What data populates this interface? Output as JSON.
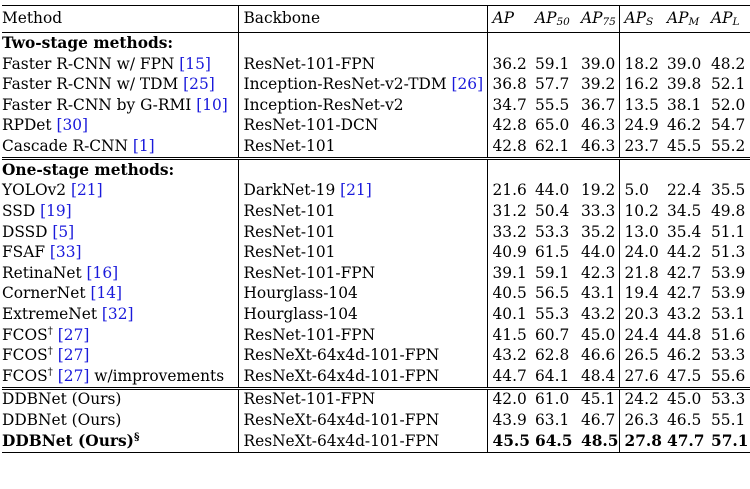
{
  "header": {
    "method": "Method",
    "backbone": "Backbone",
    "ap": "AP",
    "ap50_base": "AP",
    "ap50_sub": "50",
    "ap75_base": "AP",
    "ap75_sub": "75",
    "aps_base": "AP",
    "aps_sub": "S",
    "apm_base": "AP",
    "apm_sub": "M",
    "apl_base": "AP",
    "apl_sub": "L"
  },
  "sections": {
    "two_stage": "Two-stage methods:",
    "one_stage": "One-stage methods:"
  },
  "two_stage_rows": [
    {
      "method": "Faster R-CNN w/ FPN ",
      "ref": "[15]",
      "sup": "",
      "suffix": "",
      "backbone": "ResNet-101-FPN",
      "bref": "",
      "values": [
        "36.2",
        "59.1",
        "39.0",
        "18.2",
        "39.0",
        "48.2"
      ]
    },
    {
      "method": "Faster R-CNN w/ TDM ",
      "ref": "[25]",
      "sup": "",
      "suffix": "",
      "backbone": "Inception-ResNet-v2-TDM ",
      "bref": "[26]",
      "values": [
        "36.8",
        "57.7",
        "39.2",
        "16.2",
        "39.8",
        "52.1"
      ]
    },
    {
      "method": "Faster R-CNN by G-RMI ",
      "ref": "[10]",
      "sup": "",
      "suffix": "",
      "backbone": "Inception-ResNet-v2",
      "bref": "",
      "values": [
        "34.7",
        "55.5",
        "36.7",
        "13.5",
        "38.1",
        "52.0"
      ]
    },
    {
      "method": "RPDet ",
      "ref": "[30]",
      "sup": "",
      "suffix": "",
      "backbone": "ResNet-101-DCN",
      "bref": "",
      "values": [
        "42.8",
        "65.0",
        "46.3",
        "24.9",
        "46.2",
        "54.7"
      ]
    },
    {
      "method": "Cascade R-CNN ",
      "ref": "[1]",
      "sup": "",
      "suffix": "",
      "backbone": "ResNet-101",
      "bref": "",
      "values": [
        "42.8",
        "62.1",
        "46.3",
        "23.7",
        "45.5",
        "55.2"
      ]
    }
  ],
  "one_stage_rows": [
    {
      "method": "YOLOv2 ",
      "ref": "[21]",
      "sup": "",
      "suffix": "",
      "backbone": "DarkNet-19 ",
      "bref": "[21]",
      "values": [
        "21.6",
        "44.0",
        "19.2",
        "5.0",
        "22.4",
        "35.5"
      ]
    },
    {
      "method": "SSD ",
      "ref": "[19]",
      "sup": "",
      "suffix": "",
      "backbone": "ResNet-101",
      "bref": "",
      "values": [
        "31.2",
        "50.4",
        "33.3",
        "10.2",
        "34.5",
        "49.8"
      ]
    },
    {
      "method": "DSSD ",
      "ref": "[5]",
      "sup": "",
      "suffix": "",
      "backbone": "ResNet-101",
      "bref": "",
      "values": [
        "33.2",
        "53.3",
        "35.2",
        "13.0",
        "35.4",
        "51.1"
      ]
    },
    {
      "method": "FSAF ",
      "ref": "[33]",
      "sup": "",
      "suffix": "",
      "backbone": "ResNet-101",
      "bref": "",
      "values": [
        "40.9",
        "61.5",
        "44.0",
        "24.0",
        "44.2",
        "51.3"
      ]
    },
    {
      "method": "RetinaNet ",
      "ref": "[16]",
      "sup": "",
      "suffix": "",
      "backbone": "ResNet-101-FPN",
      "bref": "",
      "values": [
        "39.1",
        "59.1",
        "42.3",
        "21.8",
        "42.7",
        "53.9"
      ]
    },
    {
      "method": "CornerNet ",
      "ref": "[14]",
      "sup": "",
      "suffix": "",
      "backbone": "Hourglass-104",
      "bref": "",
      "values": [
        "40.5",
        "56.5",
        "43.1",
        "19.4",
        "42.7",
        "53.9"
      ]
    },
    {
      "method": "ExtremeNet ",
      "ref": "[32]",
      "sup": "",
      "suffix": "",
      "backbone": "Hourglass-104",
      "bref": "",
      "values": [
        "40.1",
        "55.3",
        "43.2",
        "20.3",
        "43.2",
        "53.1"
      ]
    },
    {
      "method": "FCOS",
      "ref": "[27]",
      "sup": "†",
      "suffix": "",
      "backbone": "ResNet-101-FPN",
      "bref": "",
      "values": [
        "41.5",
        "60.7",
        "45.0",
        "24.4",
        "44.8",
        "51.6"
      ]
    },
    {
      "method": "FCOS",
      "ref": "[27]",
      "sup": "†",
      "suffix": "",
      "backbone": "ResNeXt-64x4d-101-FPN",
      "bref": "",
      "values": [
        "43.2",
        "62.8",
        "46.6",
        "26.5",
        "46.2",
        "53.3"
      ]
    },
    {
      "method": "FCOS",
      "ref": "[27]",
      "sup": "†",
      "suffix": " w/improvements ",
      "backbone": "ResNeXt-64x4d-101-FPN",
      "bref": "",
      "values": [
        "44.7",
        "64.1",
        "48.4",
        "27.6",
        "47.5",
        "55.6"
      ]
    }
  ],
  "ours_rows": [
    {
      "method": "DDBNet (Ours)",
      "sup": "",
      "backbone": "ResNet-101-FPN",
      "bold": false,
      "values": [
        "42.0",
        "61.0",
        "45.1",
        "24.2",
        "45.0",
        "53.3"
      ]
    },
    {
      "method": "DDBNet (Ours)",
      "sup": "",
      "backbone": "ResNeXt-64x4d-101-FPN",
      "bold": false,
      "values": [
        "43.9",
        "63.1",
        "46.7",
        "26.3",
        "46.5",
        "55.1"
      ]
    },
    {
      "method": "DDBNet (Ours)",
      "sup": "§",
      "backbone": "ResNeXt-64x4d-101-FPN",
      "bold": true,
      "values": [
        "45.5",
        "64.5",
        "48.5",
        "27.8",
        "47.7",
        "57.1"
      ]
    }
  ],
  "colors": {
    "text": "#000000",
    "reference": "#1a1adb",
    "background": "#ffffff"
  }
}
